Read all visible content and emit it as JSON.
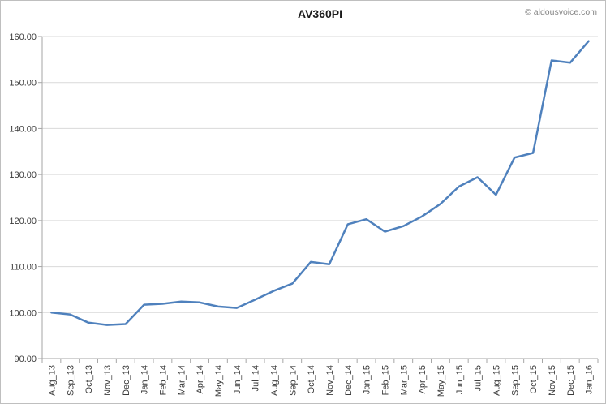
{
  "header": {
    "watermark": "© aldousvoice.com"
  },
  "chart_data": {
    "type": "line",
    "title": "AV360PI",
    "categories": [
      "Aug_13",
      "Sep_13",
      "Oct_13",
      "Nov_13",
      "Dec_13",
      "Jan_14",
      "Feb_14",
      "Mar_14",
      "Apr_14",
      "May_14",
      "Jun_14",
      "Jul_14",
      "Aug_14",
      "Sep_14",
      "Oct_14",
      "Nov_14",
      "Dec_14",
      "Jan_15",
      "Feb_15",
      "Mar_15",
      "Apr_15",
      "May_15",
      "Jun_15",
      "Jul_15",
      "Aug_15",
      "Sep_15",
      "Oct_15",
      "Nov_15",
      "Dec_15",
      "Jan_16"
    ],
    "values": [
      100.0,
      99.6,
      97.8,
      97.3,
      97.5,
      101.7,
      101.9,
      102.4,
      102.2,
      101.3,
      101.0,
      102.8,
      104.7,
      106.3,
      111.0,
      110.5,
      119.2,
      120.3,
      117.6,
      118.8,
      120.9,
      123.6,
      127.4,
      129.4,
      125.6,
      133.7,
      134.7,
      154.8,
      154.3,
      159.0
    ],
    "xlabel": "",
    "ylabel": "",
    "ylim": [
      90,
      160
    ],
    "y_tick_values": [
      160,
      150,
      140,
      130,
      120,
      110,
      100,
      90
    ],
    "y_tick_labels": [
      "160.00",
      "150.00",
      "140.00",
      "130.00",
      "120.00",
      "110.00",
      "100.00",
      "90.00"
    ],
    "grid": true,
    "legend": "none",
    "colors": {
      "line": "#4F81BD",
      "grid": "#D9D9D9",
      "axis": "#A6A6A6",
      "tick_text": "#3b3b3b",
      "title_text": "#1a1a1a",
      "watermark_text": "#848484",
      "frame_border": "#BFBFBF"
    }
  }
}
